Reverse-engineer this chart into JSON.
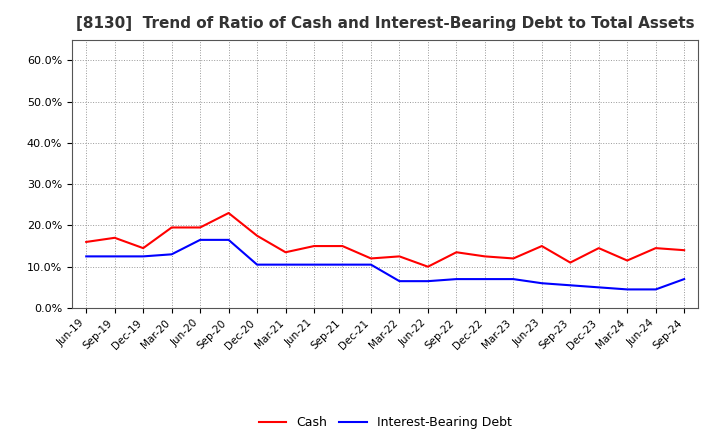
{
  "title": "[8130]  Trend of Ratio of Cash and Interest-Bearing Debt to Total Assets",
  "x_labels": [
    "Jun-19",
    "Sep-19",
    "Dec-19",
    "Mar-20",
    "Jun-20",
    "Sep-20",
    "Dec-20",
    "Mar-21",
    "Jun-21",
    "Sep-21",
    "Dec-21",
    "Mar-22",
    "Jun-22",
    "Sep-22",
    "Dec-22",
    "Mar-23",
    "Jun-23",
    "Sep-23",
    "Dec-23",
    "Mar-24",
    "Jun-24",
    "Sep-24"
  ],
  "cash": [
    16.0,
    17.0,
    14.5,
    19.5,
    19.5,
    23.0,
    17.5,
    13.5,
    15.0,
    15.0,
    12.0,
    12.5,
    10.0,
    13.5,
    12.5,
    12.0,
    15.0,
    11.0,
    14.5,
    11.5,
    14.5,
    14.0
  ],
  "debt": [
    12.5,
    12.5,
    12.5,
    13.0,
    16.5,
    16.5,
    10.5,
    10.5,
    10.5,
    10.5,
    10.5,
    6.5,
    6.5,
    7.0,
    7.0,
    7.0,
    6.0,
    5.5,
    5.0,
    4.5,
    4.5,
    7.0
  ],
  "cash_color": "#ff0000",
  "debt_color": "#0000ff",
  "ylim": [
    0,
    65
  ],
  "yticks": [
    0,
    10,
    20,
    30,
    40,
    50,
    60
  ],
  "ytick_labels": [
    "0.0%",
    "10.0%",
    "20.0%",
    "30.0%",
    "40.0%",
    "50.0%",
    "60.0%"
  ],
  "bg_color": "#ffffff",
  "plot_bg_color": "#ffffff",
  "grid_color": "#999999",
  "title_fontsize": 11,
  "tick_fontsize": 7.5,
  "legend_cash": "Cash",
  "legend_debt": "Interest-Bearing Debt"
}
